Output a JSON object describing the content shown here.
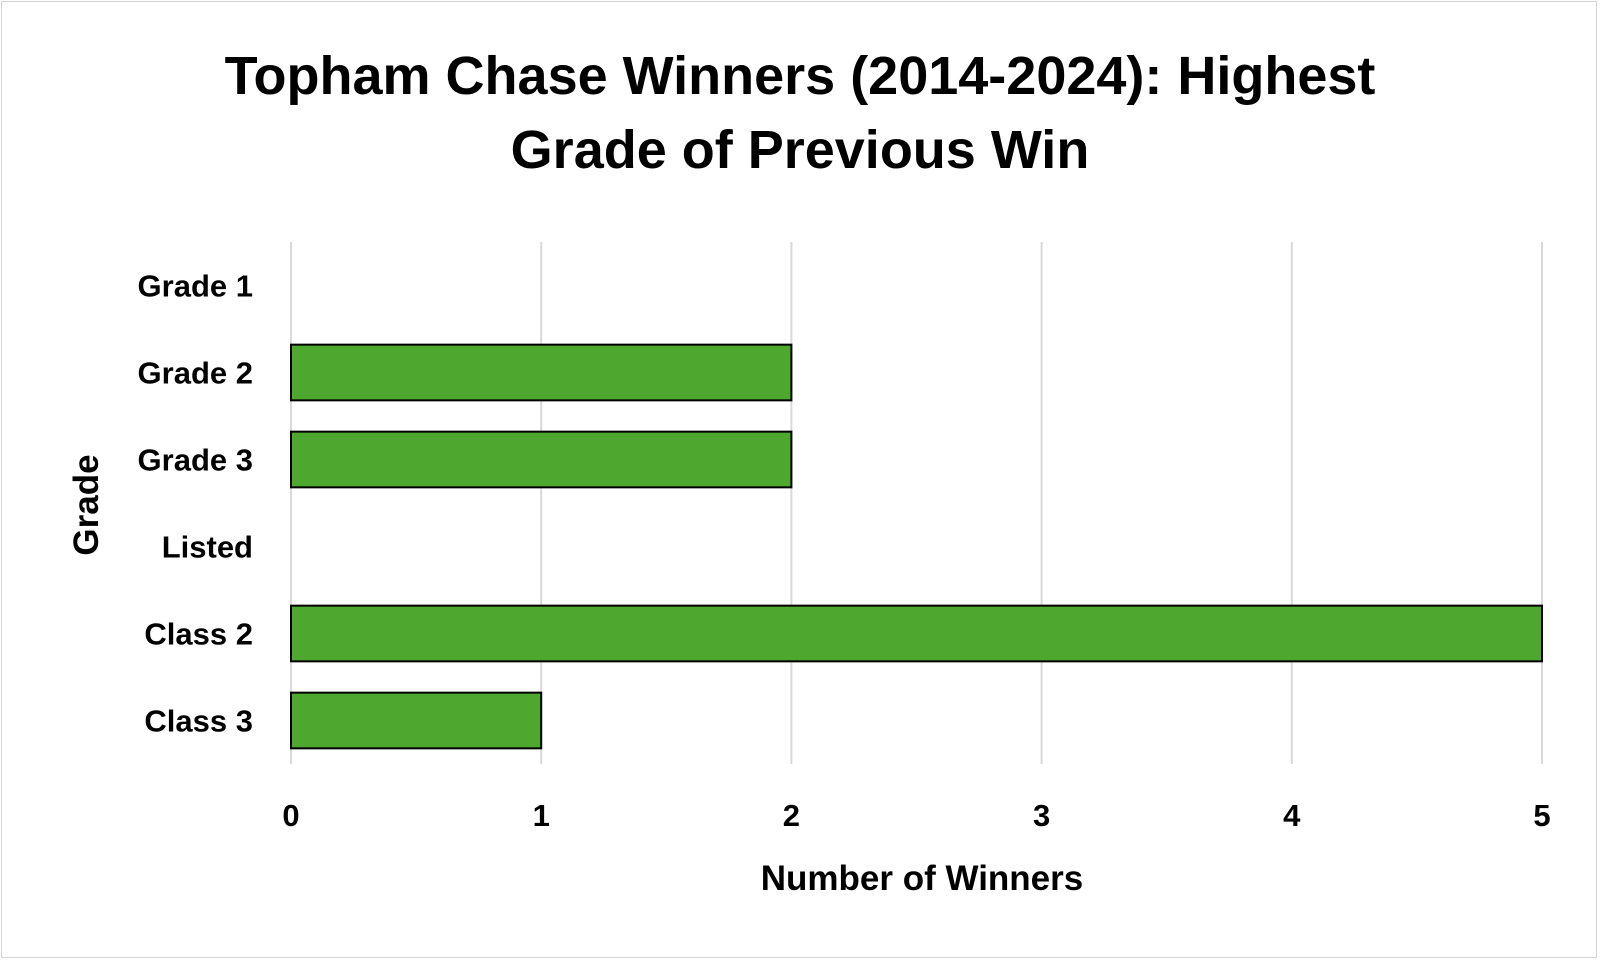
{
  "chart_data": {
    "type": "bar",
    "orientation": "horizontal",
    "title_lines": [
      "Topham Chase Winners (2014-2024): Highest",
      "Grade of Previous Win"
    ],
    "categories": [
      "Grade 1",
      "Grade 2",
      "Grade 3",
      "Listed",
      "Class 2",
      "Class 3"
    ],
    "values": [
      0,
      2,
      2,
      0,
      5,
      1
    ],
    "xlabel": "Number of Winners",
    "ylabel": "Grade",
    "xlim": [
      0,
      5
    ],
    "xticks": [
      "0",
      "1",
      "2",
      "3",
      "4",
      "5"
    ],
    "grid": "vertical",
    "legend": "none",
    "colors": {
      "bar_fill": "#4ea72e",
      "bar_stroke": "#000000",
      "grid": "#d9d9d9",
      "text": "#000000"
    }
  }
}
